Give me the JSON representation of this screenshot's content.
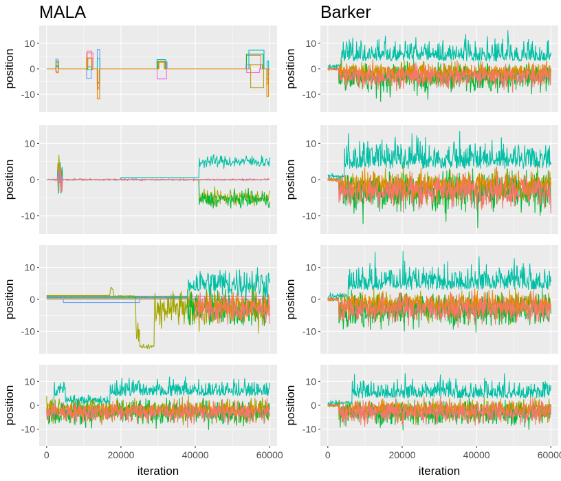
{
  "colors": {
    "panel_bg": "#EBEBEB",
    "grid": "#FFFFFF",
    "axis_text": "#4D4D4D",
    "series": [
      "#F8766D",
      "#B79F00",
      "#00BA38",
      "#00BFC4",
      "#619CFF",
      "#F564E3",
      "#C49A00",
      "#00C094"
    ]
  },
  "chart_data": [
    {
      "type": "line",
      "title": "MALA",
      "xlabel": "",
      "ylabel": "position",
      "xlim": [
        -2000,
        62000
      ],
      "ylim": [
        -17,
        17
      ],
      "xticks": [
        0,
        20000,
        40000,
        60000
      ],
      "yticks": [
        -10,
        0,
        10
      ],
      "ytick_labels": [
        "-10",
        "0",
        "10"
      ],
      "show_xticks": false,
      "pattern": "mala_spikes"
    },
    {
      "type": "line",
      "title": "Barker",
      "xlabel": "",
      "ylabel": "position",
      "xlim": [
        -2000,
        62000
      ],
      "ylim": [
        -17,
        17
      ],
      "xticks": [
        0,
        20000,
        40000,
        60000
      ],
      "yticks": [
        -10,
        0,
        10
      ],
      "ytick_labels": [
        "-10",
        "0",
        "10"
      ],
      "show_xticks": false,
      "pattern": "barker_full"
    },
    {
      "type": "line",
      "title": "",
      "xlabel": "",
      "ylabel": "position",
      "xlim": [
        -2000,
        62000
      ],
      "ylim": [
        -15,
        15
      ],
      "xticks": [
        0,
        20000,
        40000,
        60000
      ],
      "yticks": [
        -10,
        0,
        10
      ],
      "ytick_labels": [
        "-10",
        "0",
        "10"
      ],
      "show_xticks": false,
      "pattern": "mala_late"
    },
    {
      "type": "line",
      "title": "",
      "xlabel": "",
      "ylabel": "position",
      "xlim": [
        -2000,
        62000
      ],
      "ylim": [
        -15,
        15
      ],
      "xticks": [
        0,
        20000,
        40000,
        60000
      ],
      "yticks": [
        -10,
        0,
        10
      ],
      "ytick_labels": [
        "-10",
        "0",
        "10"
      ],
      "show_xticks": false,
      "pattern": "barker_full"
    },
    {
      "type": "line",
      "title": "",
      "xlabel": "",
      "ylabel": "position",
      "xlim": [
        -2000,
        62000
      ],
      "ylim": [
        -17,
        17
      ],
      "xticks": [
        0,
        20000,
        40000,
        60000
      ],
      "yticks": [
        -10,
        0,
        10
      ],
      "ytick_labels": [
        "-10",
        "0",
        "10"
      ],
      "show_xticks": false,
      "pattern": "mala_drift"
    },
    {
      "type": "line",
      "title": "",
      "xlabel": "",
      "ylabel": "position",
      "xlim": [
        -2000,
        62000
      ],
      "ylim": [
        -17,
        17
      ],
      "xticks": [
        0,
        20000,
        40000,
        60000
      ],
      "yticks": [
        -10,
        0,
        10
      ],
      "ytick_labels": [
        "-10",
        "0",
        "10"
      ],
      "show_xticks": false,
      "pattern": "barker_full"
    },
    {
      "type": "line",
      "title": "",
      "xlabel": "iteration",
      "ylabel": "position",
      "xlim": [
        -2000,
        62000
      ],
      "ylim": [
        -17,
        17
      ],
      "xticks": [
        0,
        20000,
        40000,
        60000
      ],
      "yticks": [
        -10,
        0,
        10
      ],
      "ytick_labels": [
        "-10",
        "0",
        "10"
      ],
      "show_xticks": true,
      "xtick_labels": [
        "0",
        "20000",
        "40000",
        "60000"
      ],
      "pattern": "mala_mixing"
    },
    {
      "type": "line",
      "title": "",
      "xlabel": "iteration",
      "ylabel": "position",
      "xlim": [
        -2000,
        62000
      ],
      "ylim": [
        -17,
        17
      ],
      "xticks": [
        0,
        20000,
        40000,
        60000
      ],
      "yticks": [
        -10,
        0,
        10
      ],
      "ytick_labels": [
        "-10",
        "0",
        "10"
      ],
      "show_xticks": true,
      "xtick_labels": [
        "0",
        "20000",
        "40000",
        "60000"
      ],
      "pattern": "barker_full"
    }
  ]
}
